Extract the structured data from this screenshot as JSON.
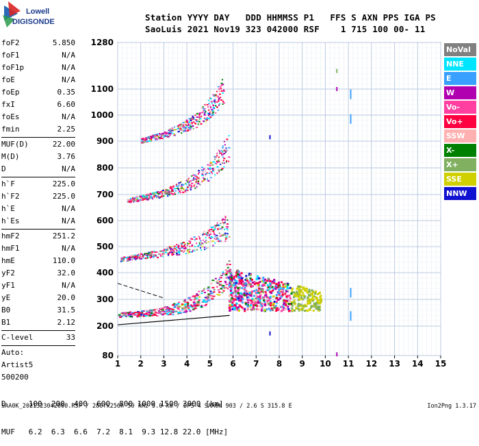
{
  "logo": {
    "line1": "Lowell",
    "line2": "DIGISONDE"
  },
  "header": {
    "line1": "Station YYYY DAY   DDD HHMMSS P1   FFS S AXN PPS IGA PS",
    "line2": "SaoLuis 2021 Nov19 323 042000 RSF    1 715 100 00- 11"
  },
  "params": [
    {
      "label": "foF2",
      "value": "5.850"
    },
    {
      "label": "foF1",
      "value": "N/A"
    },
    {
      "label": "foF1p",
      "value": "N/A"
    },
    {
      "label": "foE",
      "value": "N/A"
    },
    {
      "label": "foEp",
      "value": "0.35"
    },
    {
      "label": "fxI",
      "value": "6.60"
    },
    {
      "label": "foEs",
      "value": "N/A"
    },
    {
      "label": "fmin",
      "value": "2.25"
    },
    {
      "sep": true
    },
    {
      "label": "MUF(D)",
      "value": "22.00"
    },
    {
      "label": "M(D)",
      "value": "3.76"
    },
    {
      "label": "D",
      "value": "N/A"
    },
    {
      "sep": true
    },
    {
      "label": "h`F",
      "value": "225.0"
    },
    {
      "label": "h`F2",
      "value": "225.0"
    },
    {
      "label": "h`E",
      "value": "N/A"
    },
    {
      "label": "h`Es",
      "value": "N/A"
    },
    {
      "sep": true
    },
    {
      "label": "hmF2",
      "value": "251.2"
    },
    {
      "label": "hmF1",
      "value": "N/A"
    },
    {
      "label": "hmE",
      "value": "110.0"
    },
    {
      "label": "yF2",
      "value": "32.0"
    },
    {
      "label": "yF1",
      "value": "N/A"
    },
    {
      "label": "yE",
      "value": "20.0"
    },
    {
      "label": "B0",
      "value": "31.5"
    },
    {
      "label": "B1",
      "value": "2.12"
    },
    {
      "sep": true
    },
    {
      "label": "C-level",
      "value": "33"
    },
    {
      "sep": true
    }
  ],
  "autoscaling": {
    "line1": "Auto:",
    "line2": "Artist5",
    "line3": "500200"
  },
  "legend": [
    {
      "label": "NoVal",
      "color": "#808080"
    },
    {
      "label": "NNE",
      "color": "#00e5ff"
    },
    {
      "label": "E",
      "color": "#3aa0ff"
    },
    {
      "label": "W",
      "color": "#b000b0"
    },
    {
      "label": "Vo-",
      "color": "#ff40a0"
    },
    {
      "label": "Vo+",
      "color": "#ff0040"
    },
    {
      "label": "SSW",
      "color": "#ffb0b0"
    },
    {
      "label": "X-",
      "color": "#008000"
    },
    {
      "label": "X+",
      "color": "#80b060"
    },
    {
      "label": "SSE",
      "color": "#d0d000"
    },
    {
      "label": "NNW",
      "color": "#1010d0"
    }
  ],
  "muf_table": {
    "d_line": "D     100  200  400  600  800 1000 1500 3000 [km]",
    "muf_line": "MUF   6.2  6.3  6.6  7.2  8.1  9.3 12.8 22.0 [MHz]"
  },
  "footer": {
    "left": "SAA0K_2021323042000.RSF / 280fx256h 50 kHz 5.0 km / DPS-4 SAA0K 903 / 2.6 S 315.8 E",
    "right": "Ion2Png 1.3.17"
  },
  "chart_data": {
    "type": "scatter",
    "title": "",
    "xlabel": "",
    "ylabel": "",
    "xlim": [
      1,
      15
    ],
    "ylim": [
      80,
      1280
    ],
    "x_ticks": [
      "1",
      "2",
      "3",
      "4",
      "5",
      "6",
      "7",
      "8",
      "9",
      "10",
      "11",
      "12",
      "13",
      "14",
      "15"
    ],
    "y_ticks": [
      "80",
      "200",
      "300",
      "400",
      "500",
      "600",
      "700",
      "800",
      "900",
      "1000",
      "1100",
      "1280"
    ],
    "y_tick_values": [
      80,
      200,
      300,
      400,
      500,
      600,
      700,
      800,
      900,
      1000,
      1100,
      1280
    ],
    "traces": [
      {
        "name": "F2 1st hop",
        "f_start": 1.0,
        "f_end": 5.85,
        "h_start": 240,
        "h_end": 262,
        "blow_up": 120
      },
      {
        "name": "F2 2nd hop",
        "f_start": 1.1,
        "f_end": 5.85,
        "h_start": 450,
        "h_end": 505,
        "blow_up": 60
      },
      {
        "name": "F2 3rd hop",
        "f_start": 1.4,
        "f_end": 5.8,
        "h_start": 675,
        "h_end": 745,
        "blow_up": 110
      },
      {
        "name": "F2 4th hop",
        "f_start": 2.0,
        "f_end": 5.6,
        "h_start": 900,
        "h_end": 980,
        "blow_up": 100
      }
    ],
    "spread_region": {
      "f_min": 5.8,
      "f_max": 9.8,
      "h_min": 260,
      "h_max": 420
    },
    "profile_line": [
      [
        1.0,
        205
      ],
      [
        5.85,
        240
      ]
    ],
    "dashed_line": [
      [
        1.0,
        360
      ],
      [
        3.0,
        305
      ]
    ],
    "single_markers": [
      {
        "f": 7.6,
        "h": 915,
        "color": "#1010d0"
      },
      {
        "f": 7.6,
        "h": 170,
        "color": "#1010d0"
      },
      {
        "f": 10.5,
        "h": 1170,
        "color": "#80b060"
      },
      {
        "f": 10.5,
        "h": 1100,
        "color": "#b000b0"
      },
      {
        "f": 10.5,
        "h": 85,
        "color": "#b000b0"
      },
      {
        "f": 11.1,
        "h": 1080,
        "color": "#3aa0ff"
      },
      {
        "f": 11.1,
        "h": 985,
        "color": "#3aa0ff"
      },
      {
        "f": 11.1,
        "h": 325,
        "color": "#3aa0ff"
      },
      {
        "f": 11.1,
        "h": 238,
        "color": "#3aa0ff"
      }
    ]
  }
}
